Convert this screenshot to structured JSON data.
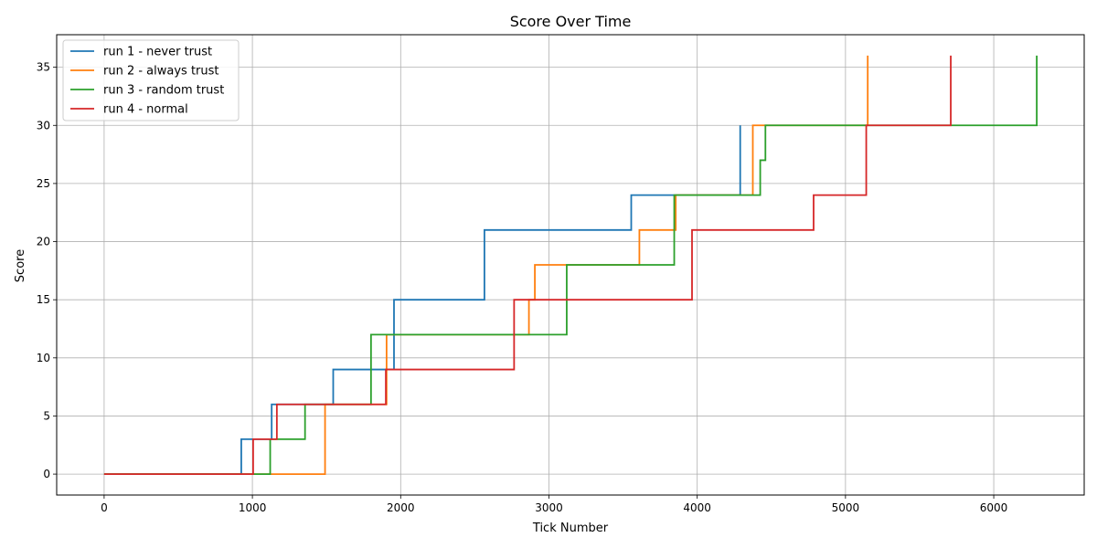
{
  "chart_data": {
    "type": "line",
    "step": "post",
    "title": "Score Over Time",
    "xlabel": "Tick Number",
    "ylabel": "Score",
    "xlim": [
      -320,
      6610
    ],
    "ylim": [
      -1.8,
      37.8
    ],
    "xticks": [
      0,
      1000,
      2000,
      3000,
      4000,
      5000,
      6000
    ],
    "yticks": [
      0,
      5,
      10,
      15,
      20,
      25,
      30,
      35
    ],
    "grid": true,
    "legend_position": "upper-left",
    "series": [
      {
        "name": "run 1 - never trust",
        "color": "#1f77b4",
        "x": [
          0,
          925,
          1130,
          1545,
          1955,
          2565,
          3555,
          4290
        ],
        "y": [
          0,
          3,
          6,
          9,
          15,
          21,
          24,
          30
        ]
      },
      {
        "name": "run 2 - always trust",
        "color": "#ff7f0e",
        "x": [
          0,
          1490,
          1905,
          2865,
          2905,
          3610,
          3855,
          4375,
          5150,
          5150
        ],
        "y": [
          0,
          6,
          12,
          15,
          18,
          21,
          24,
          30,
          36,
          36
        ]
      },
      {
        "name": "run 3 - random trust",
        "color": "#2ca02c",
        "x": [
          0,
          1120,
          1355,
          1800,
          3120,
          3845,
          4425,
          4460,
          6290,
          6290
        ],
        "y": [
          0,
          3,
          6,
          12,
          18,
          24,
          27,
          30,
          36,
          36
        ]
      },
      {
        "name": "run 4 - normal",
        "color": "#d62728",
        "x": [
          0,
          1005,
          1165,
          1900,
          2765,
          3965,
          4785,
          5140,
          5710,
          5710
        ],
        "y": [
          0,
          3,
          6,
          9,
          15,
          21,
          24,
          30,
          36,
          36
        ]
      }
    ]
  }
}
